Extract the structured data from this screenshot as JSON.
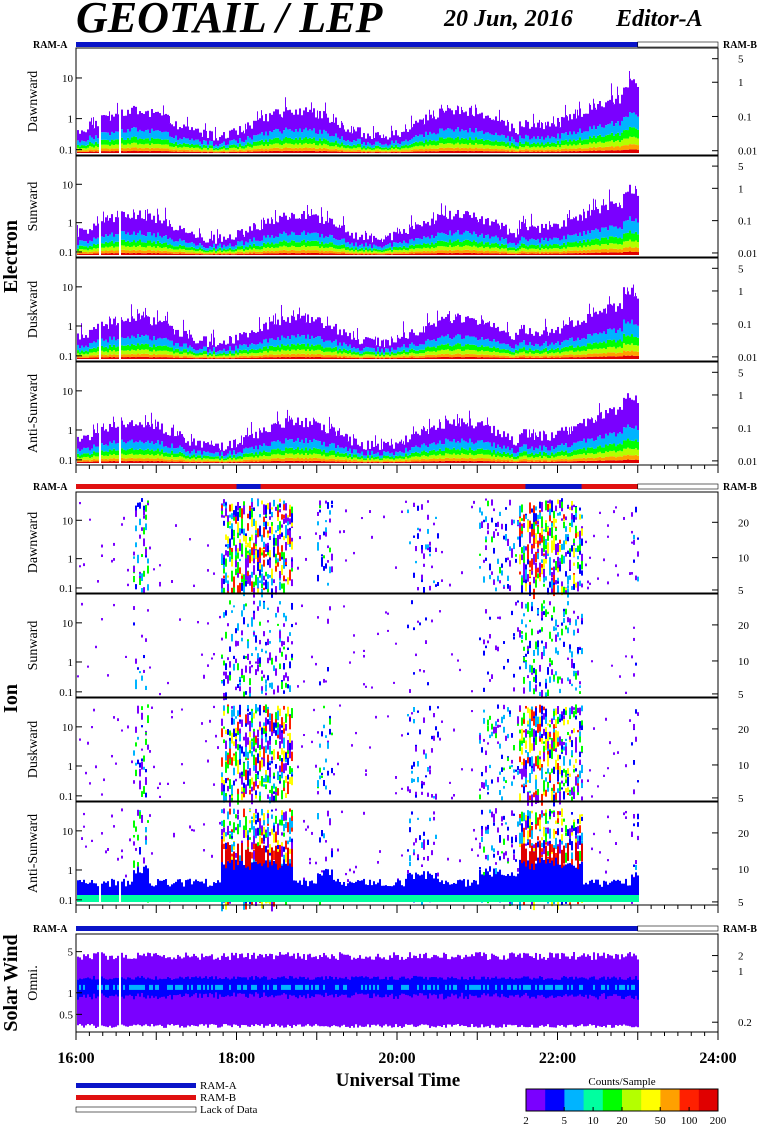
{
  "header": {
    "title": "GEOTAIL / LEP",
    "date": "20 Jun, 2016",
    "editor": "Editor-A"
  },
  "chart_data": {
    "type": "heatmap",
    "title": "GEOTAIL / LEP",
    "xlabel": "Universal Time",
    "x_ticks": [
      "16:00",
      "18:00",
      "20:00",
      "22:00",
      "24:00"
    ],
    "x_range_hours": [
      16,
      24
    ],
    "data_end_hour": 23.0,
    "groups": [
      {
        "name": "Electron",
        "mode_left": "RAM-A",
        "mode_right": "RAM-B",
        "panels": [
          {
            "name": "Dawnward",
            "y_ticks_left": [
              "10",
              "1",
              "0.1"
            ],
            "y_ticks_right": [
              "5",
              "1",
              "0.1",
              "0.01"
            ]
          },
          {
            "name": "Sunward",
            "y_ticks_left": [
              "10",
              "1",
              "0.1"
            ],
            "y_ticks_right": [
              "5",
              "1",
              "0.1",
              "0.01"
            ]
          },
          {
            "name": "Duskward",
            "y_ticks_left": [
              "10",
              "1",
              "0.1"
            ],
            "y_ticks_right": [
              "5",
              "1",
              "0.1",
              "0.01"
            ]
          },
          {
            "name": "Anti-Sunward",
            "y_ticks_left": [
              "10",
              "1",
              "0.1"
            ],
            "y_ticks_right": [
              "5",
              "1",
              "0.1",
              "0.01"
            ]
          }
        ]
      },
      {
        "name": "Ion",
        "mode_left": "RAM-A",
        "mode_right": "RAM-B",
        "panels": [
          {
            "name": "Dawnward",
            "y_ticks_left": [
              "10",
              "1",
              "0.1"
            ],
            "y_ticks_right": [
              "20",
              "10",
              "5"
            ]
          },
          {
            "name": "Sunward",
            "y_ticks_left": [
              "10",
              "1",
              "0.1"
            ],
            "y_ticks_right": [
              "20",
              "10",
              "5"
            ]
          },
          {
            "name": "Duskward",
            "y_ticks_left": [
              "10",
              "1",
              "0.1"
            ],
            "y_ticks_right": [
              "20",
              "10",
              "5"
            ]
          },
          {
            "name": "Anti-Sunward",
            "y_ticks_left": [
              "10",
              "1",
              "0.1"
            ],
            "y_ticks_right": [
              "20",
              "10",
              "5"
            ]
          }
        ]
      },
      {
        "name": "Solar Wind",
        "mode_left": "RAM-A",
        "mode_right": "RAM-B",
        "panels": [
          {
            "name": "Omni.",
            "y_ticks_left": [
              "5",
              "1",
              "0.5"
            ],
            "y_ticks_right": [
              "2",
              "1",
              "0.2"
            ]
          }
        ]
      }
    ],
    "legend": {
      "items": [
        {
          "label": "RAM-A",
          "color": "#0a14c8"
        },
        {
          "label": "RAM-B",
          "color": "#e01010"
        },
        {
          "label": "Lack of Data",
          "color": "#ffffff"
        }
      ]
    },
    "colorbar": {
      "title": "Counts/Sample",
      "ticks": [
        "2",
        "5",
        "10",
        "20",
        "50",
        "100",
        "200"
      ],
      "colors": [
        "#7a00ff",
        "#0000ff",
        "#00b4ff",
        "#00ffa0",
        "#00ff00",
        "#b4ff00",
        "#ffff00",
        "#ffa000",
        "#ff2000",
        "#e00000"
      ]
    }
  }
}
